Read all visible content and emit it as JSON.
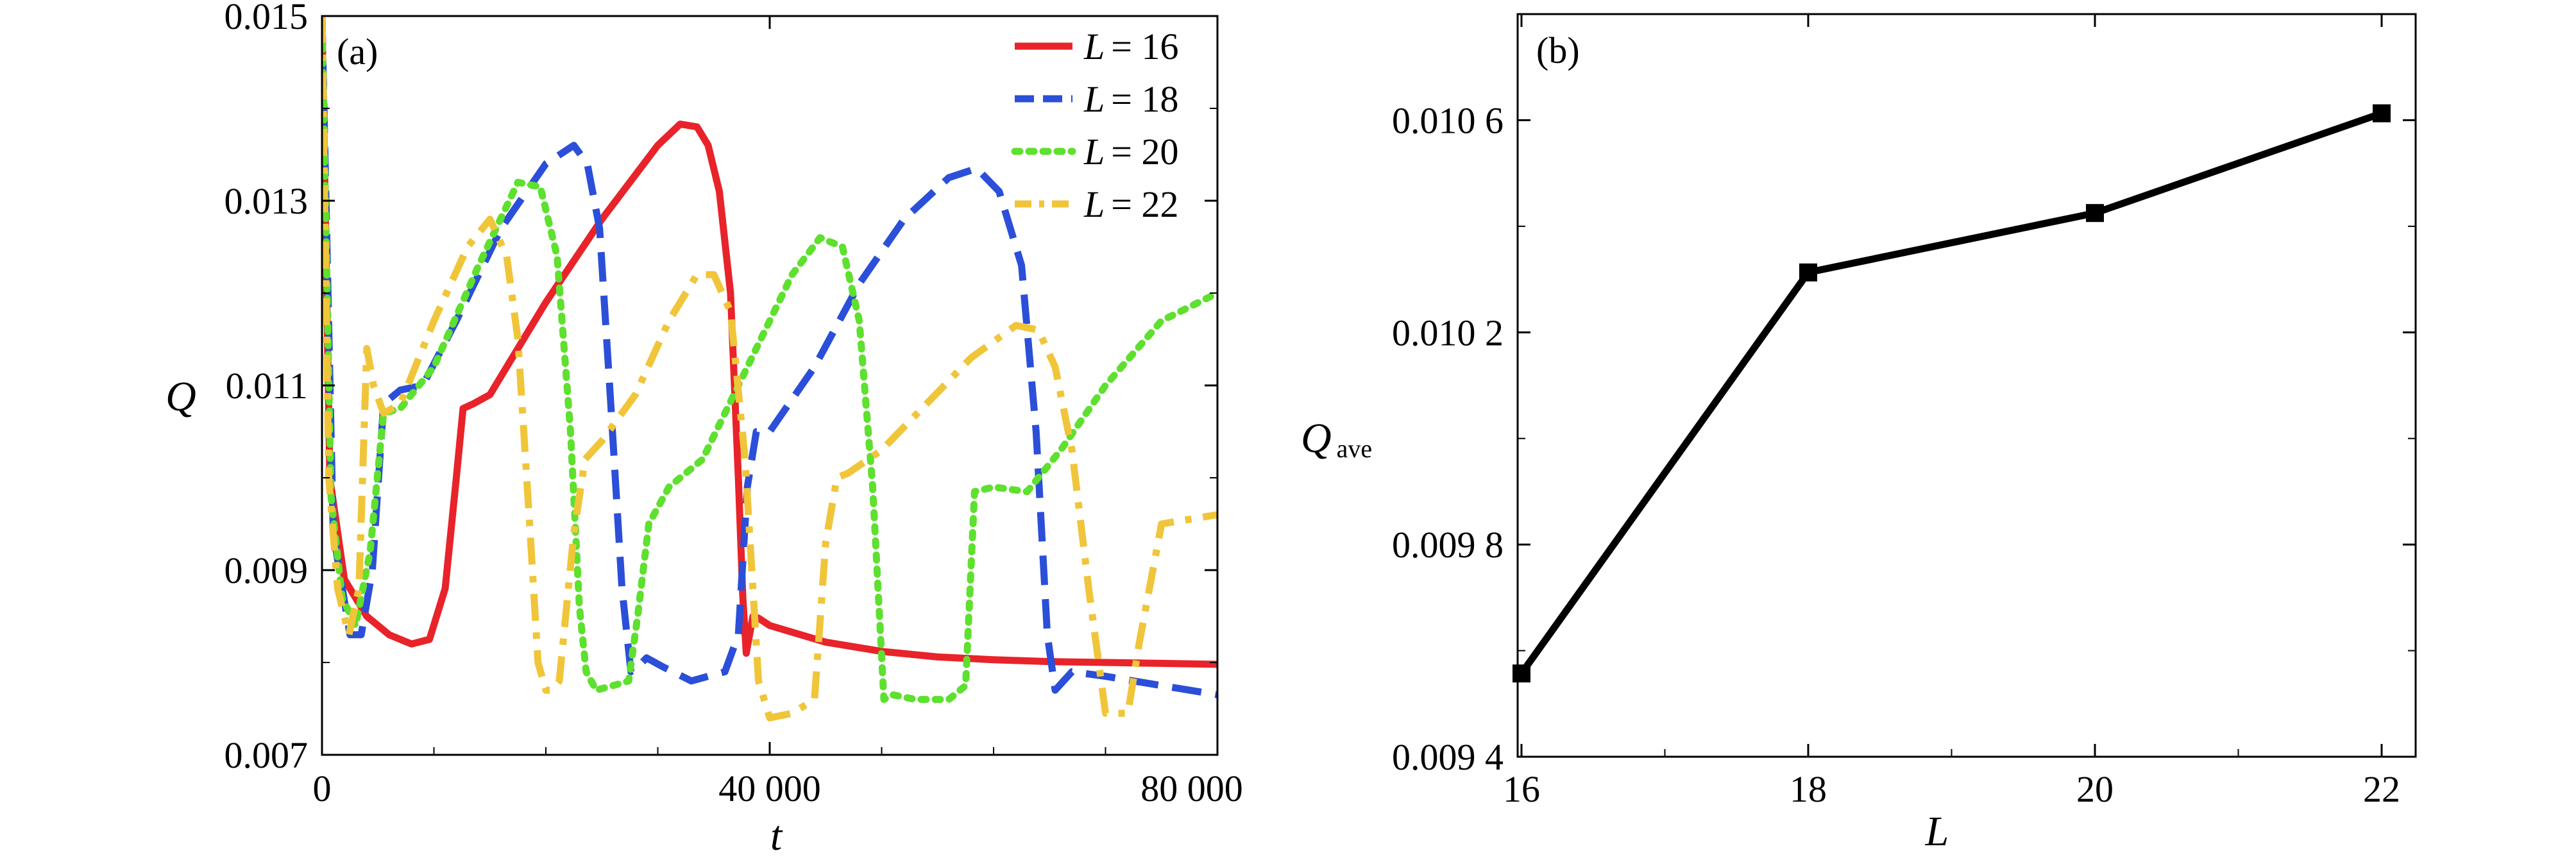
{
  "chart_data": [
    {
      "type": "line",
      "panel_label": "(a)",
      "xlabel": "t",
      "ylabel": "Q",
      "xlim": [
        0,
        80000
      ],
      "ylim": [
        0.007,
        0.015
      ],
      "xticks": [
        0,
        40000,
        80000
      ],
      "xtick_labels": [
        "0",
        "40 000",
        "80 000"
      ],
      "yticks": [
        0.007,
        0.009,
        0.011,
        0.013,
        0.015
      ],
      "ytick_labels": [
        "0.007",
        "0.009",
        "0.011",
        "0.013",
        "0.015"
      ],
      "legend_position": "top-right",
      "series": [
        {
          "name": "L = 16",
          "legend_text": "= 16",
          "color": "#e8232a",
          "style": "solid",
          "x": [
            0,
            700,
            2000,
            4000,
            6000,
            8000,
            9600,
            11000,
            12000,
            12600,
            13500,
            15000,
            20000,
            25000,
            30000,
            32000,
            33500,
            34500,
            35500,
            36500,
            37200,
            37600,
            37900,
            38200,
            38500,
            39000,
            40000,
            45000,
            50000,
            55000,
            60000,
            65000,
            70000,
            75000,
            80000
          ],
          "y": [
            0.015,
            0.01,
            0.0089,
            0.0085,
            0.0083,
            0.0082,
            0.00825,
            0.0088,
            0.01,
            0.01075,
            0.0108,
            0.0109,
            0.0119,
            0.0128,
            0.0136,
            0.01383,
            0.0138,
            0.0136,
            0.0131,
            0.012,
            0.01,
            0.0087,
            0.0081,
            0.0083,
            0.0085,
            0.00848,
            0.0084,
            0.00822,
            0.00812,
            0.00806,
            0.00803,
            0.00801,
            0.008,
            0.00799,
            0.00798
          ]
        },
        {
          "name": "L = 18",
          "legend_text": "= 18",
          "color": "#2b4fd8",
          "style": "dashed",
          "x": [
            0,
            1000,
            2500,
            3500,
            4500,
            5500,
            7000,
            9000,
            12000,
            16000,
            20000,
            22500,
            23700,
            24800,
            25800,
            26800,
            27600,
            28200,
            29000,
            30500,
            33000,
            36000,
            37200,
            38000,
            38800,
            40000,
            44000,
            48000,
            52000,
            56000,
            58500,
            60500,
            62500,
            63800,
            64800,
            65500,
            67000,
            70000,
            75000,
            80000
          ],
          "y": [
            0.015,
            0.0094,
            0.0083,
            0.0083,
            0.009,
            0.0108,
            0.01095,
            0.011,
            0.0117,
            0.0127,
            0.0134,
            0.0136,
            0.0134,
            0.0127,
            0.0108,
            0.0088,
            0.0079,
            0.00795,
            0.00805,
            0.00795,
            0.0078,
            0.0079,
            0.0083,
            0.0099,
            0.0105,
            0.0105,
            0.0112,
            0.0121,
            0.0128,
            0.01325,
            0.01335,
            0.0131,
            0.0123,
            0.0105,
            0.0083,
            0.0077,
            0.0079,
            0.00785,
            0.00775,
            0.00765
          ]
        },
        {
          "name": "L = 20",
          "legend_text": "= 20",
          "color": "#5ee02e",
          "style": "dotted",
          "x": [
            0,
            800,
            1800,
            3000,
            4300,
            5500,
            7000,
            10000,
            14000,
            17500,
            19500,
            21000,
            22200,
            23000,
            23600,
            24500,
            26000,
            27400,
            28200,
            29200,
            31000,
            34000,
            38000,
            42000,
            44500,
            46500,
            48000,
            49200,
            50200,
            51000,
            53000,
            56000,
            57500,
            58300,
            60000,
            63000,
            66000,
            70000,
            75000,
            80000
          ],
          "y": [
            0.015,
            0.0098,
            0.0087,
            0.0084,
            0.0092,
            0.0107,
            0.01075,
            0.0112,
            0.0123,
            0.0132,
            0.01315,
            0.0124,
            0.0105,
            0.0086,
            0.0079,
            0.0077,
            0.00775,
            0.0078,
            0.0085,
            0.0095,
            0.0099,
            0.0102,
            0.0112,
            0.0122,
            0.0126,
            0.0125,
            0.0117,
            0.0099,
            0.0076,
            0.00765,
            0.0076,
            0.0076,
            0.00775,
            0.00985,
            0.0099,
            0.00985,
            0.0103,
            0.011,
            0.0117,
            0.012
          ]
        },
        {
          "name": "L = 22",
          "legend_text": "= 22",
          "color": "#f0c53a",
          "style": "dashdot",
          "x": [
            0,
            600,
            1400,
            2400,
            3300,
            4000,
            4600,
            5500,
            7000,
            10000,
            13000,
            15000,
            16500,
            17500,
            18500,
            19300,
            20000,
            20500,
            21200,
            22500,
            23500,
            25000,
            28000,
            31000,
            33500,
            35000,
            36500,
            37800,
            39000,
            40000,
            42000,
            44000,
            45000,
            46000,
            47000,
            50000,
            54000,
            58000,
            62000,
            64000,
            65500,
            67000,
            68500,
            70000,
            72000,
            73000,
            75000,
            80000
          ],
          "y": [
            0.015,
            0.01,
            0.0088,
            0.0083,
            0.0088,
            0.0114,
            0.011,
            0.0107,
            0.0108,
            0.0117,
            0.0125,
            0.0128,
            0.0124,
            0.0115,
            0.0096,
            0.008,
            0.0077,
            0.0077,
            0.0078,
            0.0094,
            0.0102,
            0.0104,
            0.0109,
            0.0117,
            0.0122,
            0.0122,
            0.0118,
            0.0102,
            0.0078,
            0.0074,
            0.00745,
            0.0076,
            0.0093,
            0.01,
            0.01005,
            0.0103,
            0.0108,
            0.0113,
            0.01165,
            0.0116,
            0.0112,
            0.0103,
            0.0088,
            0.00745,
            0.00745,
            0.0082,
            0.0095,
            0.0096
          ]
        }
      ]
    },
    {
      "type": "line",
      "panel_label": "(b)",
      "xlabel": "L",
      "ylabel": "Q",
      "ylabel_sub": "ave",
      "xlim": [
        16,
        22
      ],
      "ylim": [
        0.0094,
        0.0108
      ],
      "xticks": [
        16,
        18,
        20,
        22
      ],
      "xtick_labels": [
        "16",
        "18",
        "20",
        "22"
      ],
      "yticks": [
        0.0094,
        0.0098,
        0.0102,
        0.0106
      ],
      "ytick_labels": [
        "0.009 4",
        "0.009 8",
        "0.010 2",
        "0.010 6"
      ],
      "series": [
        {
          "color": "#000000",
          "style": "solid",
          "marker": "square",
          "x": [
            16,
            18,
            20,
            22
          ],
          "y": [
            0.009557,
            0.010313,
            0.010425,
            0.010613
          ]
        }
      ]
    }
  ]
}
